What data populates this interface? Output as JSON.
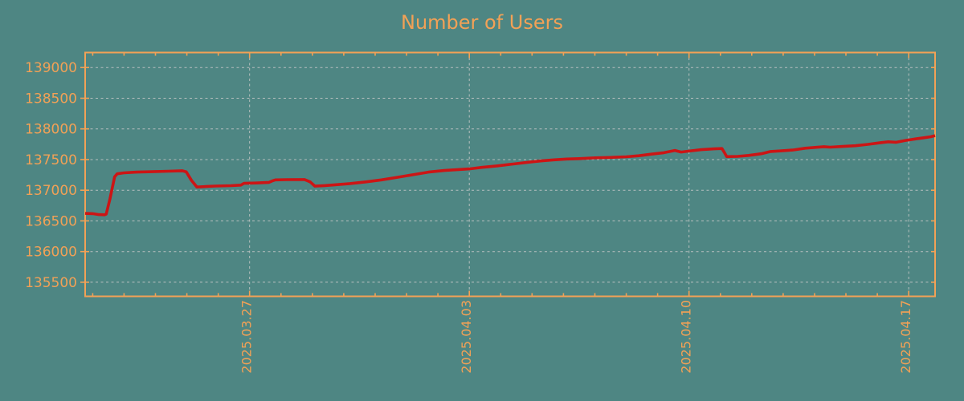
{
  "title": "Number of Users",
  "colors": {
    "background": "#4e8683",
    "accent_orange": "#f2a156",
    "line_red": "#cc1515",
    "grid_gray": "#c9c9c9"
  },
  "chart_data": {
    "type": "line",
    "title": "Number of Users",
    "legend": false,
    "grid": true,
    "x_axis": {
      "unit": "days relative to 2025.03.27",
      "tick_labels": [
        "2025.03.27",
        "2025.04.03",
        "2025.04.10",
        "2025.04.17"
      ],
      "tick_days": [
        0,
        7,
        14,
        21
      ],
      "minor_tick_day_range": [
        -5,
        21
      ],
      "xlim_days": [
        -5.24,
        21.84
      ]
    },
    "y_axis": {
      "ticks": [
        135500,
        136000,
        136500,
        137000,
        137500,
        138000,
        138500,
        139000
      ],
      "ylim": [
        135270,
        139245
      ]
    },
    "series": [
      {
        "name": "users",
        "points": [
          [
            -5.24,
            136622
          ],
          [
            -5.0,
            136618
          ],
          [
            -4.8,
            136602
          ],
          [
            -4.62,
            136600
          ],
          [
            -4.57,
            136610
          ],
          [
            -4.45,
            136860
          ],
          [
            -4.3,
            137220
          ],
          [
            -4.22,
            137268
          ],
          [
            -4.0,
            137283
          ],
          [
            -3.6,
            137295
          ],
          [
            -3.1,
            137302
          ],
          [
            -2.6,
            137310
          ],
          [
            -2.15,
            137318
          ],
          [
            -2.02,
            137300
          ],
          [
            -1.85,
            137160
          ],
          [
            -1.68,
            137052
          ],
          [
            -1.4,
            137060
          ],
          [
            -1.1,
            137068
          ],
          [
            -0.6,
            137075
          ],
          [
            -0.28,
            137083
          ],
          [
            -0.18,
            137112
          ],
          [
            0.2,
            137118
          ],
          [
            0.62,
            137128
          ],
          [
            0.72,
            137152
          ],
          [
            0.82,
            137168
          ],
          [
            1.2,
            137172
          ],
          [
            1.75,
            137174
          ],
          [
            1.93,
            137136
          ],
          [
            2.08,
            137066
          ],
          [
            2.4,
            137076
          ],
          [
            2.8,
            137092
          ],
          [
            3.2,
            137108
          ],
          [
            3.7,
            137136
          ],
          [
            4.2,
            137168
          ],
          [
            4.7,
            137210
          ],
          [
            5.2,
            137252
          ],
          [
            5.7,
            137295
          ],
          [
            6.2,
            137322
          ],
          [
            6.7,
            137338
          ],
          [
            7.0,
            137348
          ],
          [
            7.4,
            137372
          ],
          [
            7.9,
            137398
          ],
          [
            8.4,
            137428
          ],
          [
            8.9,
            137458
          ],
          [
            9.3,
            137478
          ],
          [
            9.7,
            137495
          ],
          [
            10.1,
            137508
          ],
          [
            10.5,
            137515
          ],
          [
            11.0,
            137528
          ],
          [
            11.5,
            137535
          ],
          [
            12.0,
            137545
          ],
          [
            12.4,
            137562
          ],
          [
            12.8,
            137588
          ],
          [
            13.2,
            137612
          ],
          [
            13.55,
            137648
          ],
          [
            13.75,
            137622
          ],
          [
            14.0,
            137638
          ],
          [
            14.4,
            137662
          ],
          [
            14.8,
            137675
          ],
          [
            15.05,
            137680
          ],
          [
            15.12,
            137620
          ],
          [
            15.2,
            137548
          ],
          [
            15.55,
            137552
          ],
          [
            15.9,
            137568
          ],
          [
            16.3,
            137595
          ],
          [
            16.6,
            137632
          ],
          [
            16.9,
            137640
          ],
          [
            17.3,
            137655
          ],
          [
            17.7,
            137685
          ],
          [
            18.05,
            137700
          ],
          [
            18.3,
            137710
          ],
          [
            18.5,
            137702
          ],
          [
            18.9,
            137714
          ],
          [
            19.3,
            137726
          ],
          [
            19.7,
            137748
          ],
          [
            20.05,
            137772
          ],
          [
            20.35,
            137790
          ],
          [
            20.6,
            137782
          ],
          [
            20.9,
            137812
          ],
          [
            21.2,
            137836
          ],
          [
            21.5,
            137856
          ],
          [
            21.7,
            137872
          ],
          [
            21.84,
            137890
          ]
        ]
      }
    ]
  }
}
